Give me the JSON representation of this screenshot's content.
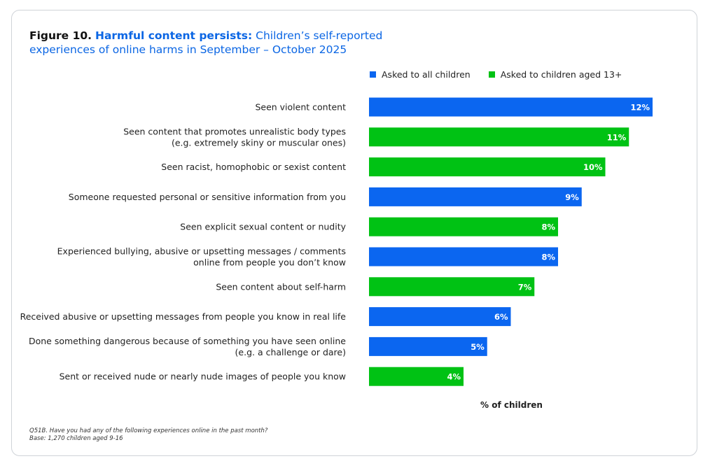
{
  "title": {
    "figure": "Figure 10.",
    "lead": "Harmful content persists:",
    "rest": "Children’s self-reported experiences of online harms in September – October 2025"
  },
  "legend": [
    {
      "label": "Asked to all children",
      "color": "#0b66f0"
    },
    {
      "label": "Asked to children aged 13+",
      "color": "#00c214"
    }
  ],
  "chart_data": {
    "type": "bar",
    "orientation": "horizontal",
    "xlabel": "% of children",
    "categories": [
      [
        "Seen violent content"
      ],
      [
        "Seen content that promotes unrealistic body types",
        "(e.g. extremely skiny or muscular ones)"
      ],
      [
        "Seen racist, homophobic or sexist content"
      ],
      [
        "Someone requested personal or sensitive information from you"
      ],
      [
        "Seen explicit sexual content or nudity"
      ],
      [
        "Experienced bullying, abusive or upsetting messages / comments",
        "online from people you don’t know"
      ],
      [
        "Seen content about self-harm"
      ],
      [
        "Received abusive or upsetting messages from people you know in real life"
      ],
      [
        "Done something dangerous because of something you have seen online",
        "(e.g. a challenge or dare)"
      ],
      [
        "Sent or received nude or nearly nude images of people you know"
      ]
    ],
    "values": [
      12,
      11,
      10,
      9,
      8,
      8,
      7,
      6,
      5,
      4
    ],
    "value_labels": [
      "12%",
      "11%",
      "10%",
      "9%",
      "8%",
      "8%",
      "7%",
      "6%",
      "5%",
      "4%"
    ],
    "group": [
      "all",
      "13+",
      "13+",
      "all",
      "13+",
      "all",
      "13+",
      "all",
      "all",
      "13+"
    ],
    "group_colors": {
      "all": "#0b66f0",
      "13+": "#00c214"
    },
    "xlim": [
      0,
      12
    ],
    "grid": false,
    "legend_position": "top"
  },
  "footnote": [
    "Q51B. Have you had any of the following experiences online in the past month?",
    "Base: 1,270 children aged 9-16"
  ]
}
